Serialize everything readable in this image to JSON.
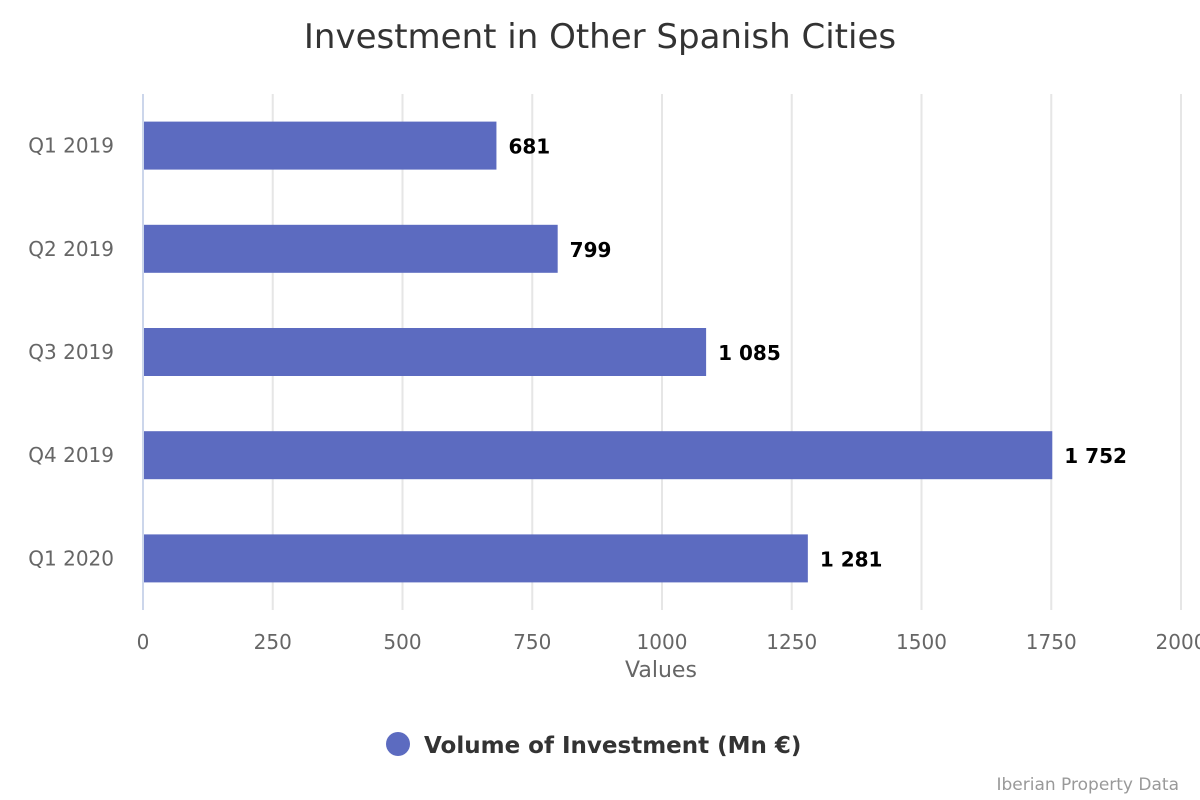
{
  "chart_data": {
    "type": "bar",
    "orientation": "horizontal",
    "title": "Investment in Other Spanish Cities",
    "xlabel": "Values",
    "categories": [
      "Q1 2019",
      "Q2 2019",
      "Q3 2019",
      "Q4 2019",
      "Q1 2020"
    ],
    "series": [
      {
        "name": "Volume of Investment (Mn €)",
        "values": [
          681,
          799,
          1085,
          1752,
          1281
        ],
        "color": "#5c6bc0"
      }
    ],
    "data_labels": [
      "681",
      "799",
      "1 085",
      "1 752",
      "1 281"
    ],
    "value_axis": {
      "range": [
        0,
        2000
      ],
      "ticks": [
        "0",
        "250",
        "500",
        "750",
        "1000",
        "1250",
        "1500",
        "1750",
        "2000"
      ],
      "grid": true
    },
    "legend": {
      "placement": "bottom-center"
    },
    "credits": "Iberian Property Data"
  }
}
